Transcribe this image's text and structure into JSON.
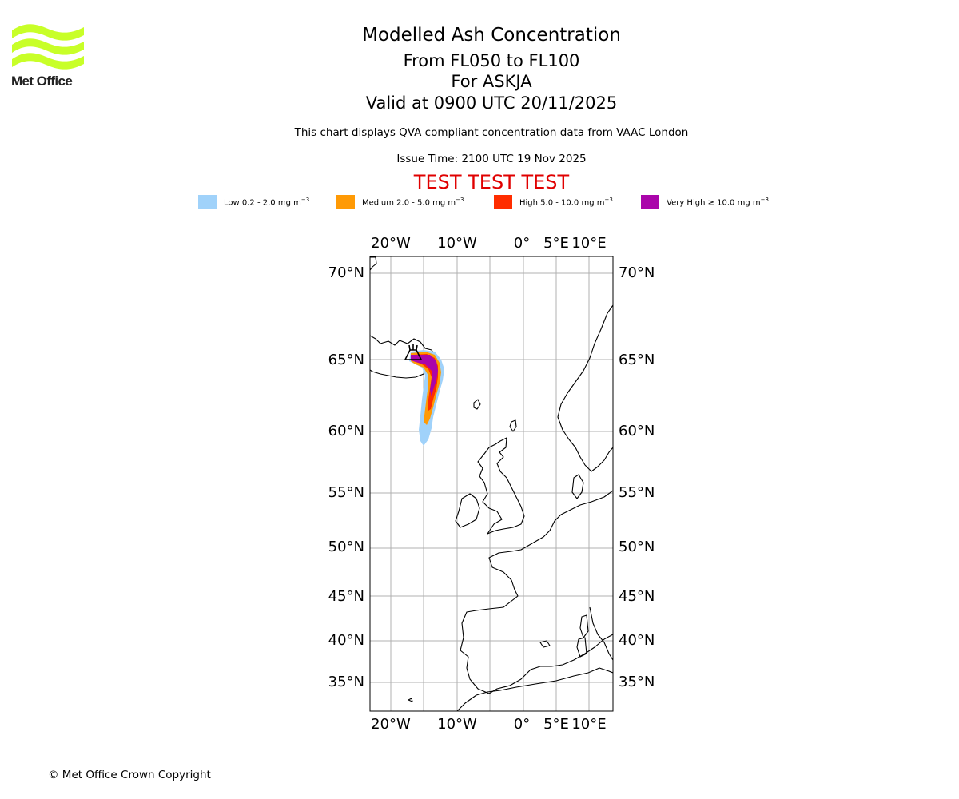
{
  "logo": {
    "brand": "Met Office",
    "colors": {
      "waves": "#c8ff28",
      "text": "#222222"
    }
  },
  "header": {
    "title": "Modelled Ash Concentration",
    "levels": "From FL050 to FL100",
    "volcano": "For ASKJA",
    "valid": "Valid at 0900 UTC 20/11/2025",
    "subtitle": "This chart displays QVA compliant concentration data from VAAC London",
    "issue_time": "Issue Time: 2100 UTC 19 Nov 2025",
    "test_banner": "TEST TEST TEST",
    "test_color": "#e00000"
  },
  "legend": [
    {
      "label": "Low 0.2 - 2.0 mg m",
      "unit_exp": "−3",
      "color": "#a0d2fa"
    },
    {
      "label": "Medium 2.0 - 5.0 mg m",
      "unit_exp": "−3",
      "color": "#ff9a05"
    },
    {
      "label": "High 5.0 - 10.0 mg m",
      "unit_exp": "−3",
      "color": "#ff2d00"
    },
    {
      "label": "Very High  ≥  10.0 mg m",
      "unit_exp": "−3",
      "color": "#aa05aa"
    }
  ],
  "map": {
    "lon_labels": [
      "20°W",
      "10°W",
      "0°",
      "5°E",
      "10°E"
    ],
    "lat_labels": [
      "70°N",
      "65°N",
      "60°N",
      "55°N",
      "50°N",
      "45°N",
      "40°N",
      "35°N"
    ],
    "grid_color": "#b0b0b0",
    "volcano": {
      "name": "ASKJA",
      "lat": 65.03,
      "lon": -16.75
    }
  },
  "footer": {
    "copyright": "© Met Office Crown Copyright"
  }
}
